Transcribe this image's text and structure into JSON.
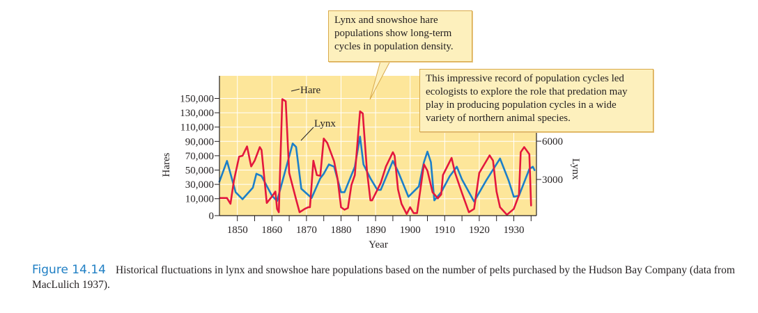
{
  "chart_data": {
    "type": "line",
    "xlabel": "Year",
    "ylabel_left": "Hares",
    "ylabel_right": "Lynx",
    "x_ticks": [
      1850,
      1860,
      1870,
      1880,
      1890,
      1900,
      1910,
      1920,
      1930
    ],
    "xlim": [
      1845,
      1936
    ],
    "y_left_ticks": [
      0,
      10000,
      30000,
      50000,
      70000,
      90000,
      110000,
      130000,
      150000
    ],
    "y_left_tick_labels": [
      "0",
      "10,000",
      "30,000",
      "50,000",
      "70,000",
      "90,000",
      "110,000",
      "130,000",
      "150,000"
    ],
    "y_right_ticks": [
      3000,
      6000
    ],
    "y_right_tick_labels": [
      "3000",
      "6000"
    ],
    "grid": true,
    "background": "#fde69a",
    "series": [
      {
        "name": "Hare",
        "axis": "left",
        "color": "#e3173d",
        "x": [
          1845,
          1847,
          1848,
          1849,
          1850.5,
          1851.5,
          1852.8,
          1854,
          1855,
          1856.5,
          1857,
          1858.5,
          1860,
          1861,
          1861.5,
          1862,
          1863,
          1864,
          1865,
          1867,
          1868,
          1869.5,
          1870.5,
          1871,
          1872,
          1873,
          1874,
          1875,
          1876,
          1878,
          1879,
          1880,
          1881,
          1882,
          1883,
          1884,
          1885.5,
          1886.3,
          1887.5,
          1888.5,
          1889,
          1891.5,
          1893,
          1895,
          1895.5,
          1896.5,
          1897.5,
          1899,
          1900,
          1901,
          1902,
          1904,
          1905,
          1906.5,
          1908,
          1909,
          1909.5,
          1912,
          1913,
          1915,
          1917,
          1918.5,
          1920,
          1923,
          1924,
          1925,
          1926,
          1928,
          1930,
          1931.5,
          1932,
          1933,
          1934.5,
          1935
        ],
        "y": [
          11000,
          11000,
          7000,
          35000,
          68600,
          70000,
          83000,
          55000,
          63000,
          82000,
          78000,
          7500,
          13000,
          20000,
          4000,
          2000,
          149000,
          146000,
          46000,
          9600,
          2000,
          4000,
          5000,
          5000,
          63000,
          43000,
          42000,
          94000,
          88000,
          62000,
          38000,
          5000,
          3500,
          4500,
          29000,
          43000,
          132000,
          129000,
          49000,
          9000,
          9000,
          32000,
          55000,
          75000,
          70000,
          23000,
          7000,
          1000,
          5000,
          1500,
          1500,
          58000,
          49000,
          19000,
          10500,
          16000,
          43000,
          67000,
          46000,
          18000,
          2000,
          4000,
          46000,
          70500,
          63000,
          20000,
          5000,
          500,
          4000,
          15000,
          75000,
          82000,
          72000,
          6000
        ]
      },
      {
        "name": "Lynx",
        "axis": "right",
        "color": "#1b7fc9",
        "x": [
          1844.8,
          1847,
          1849.5,
          1851.5,
          1854.5,
          1855.5,
          1857,
          1860,
          1861.5,
          1866,
          1867,
          1868.5,
          1871.5,
          1874,
          1875,
          1876.5,
          1878,
          1880,
          1881,
          1884,
          1885.5,
          1886.5,
          1888.5,
          1890.5,
          1891.5,
          1895,
          1896.5,
          1899.5,
          1902.5,
          1904,
          1905,
          1906,
          1907,
          1909,
          1911.5,
          1913.5,
          1915,
          1918.5,
          1922,
          1926,
          1928.5,
          1930,
          1931.5,
          1934.5,
          1935.5,
          1936
        ],
        "y": [
          2820,
          4450,
          2000,
          1450,
          2360,
          3450,
          3270,
          1730,
          1310,
          5820,
          5550,
          2270,
          1550,
          3090,
          3450,
          4180,
          4000,
          2000,
          2000,
          4000,
          6360,
          4180,
          3090,
          2180,
          2180,
          4450,
          3640,
          1640,
          2450,
          4360,
          5180,
          4360,
          1360,
          2000,
          3270,
          4000,
          3000,
          1270,
          2910,
          4640,
          2910,
          1640,
          1730,
          3820,
          4000,
          3730
        ]
      }
    ],
    "annotations": {
      "hare_label": "Hare",
      "lynx_label": "Lynx",
      "callout_1": "Lynx and snowshoe hare populations show long-term cycles in population density.",
      "callout_2": "This impressive record of population cycles led ecologists to explore the role that predation may play in producing population cycles in a wide variety of northern animal species."
    }
  },
  "caption": {
    "figure_number": "Figure 14.14",
    "text": "Historical fluctuations in lynx and snowshoe hare populations based on the number of pelts purchased by the Hudson Bay Company (data from MacLulich 1937)."
  }
}
